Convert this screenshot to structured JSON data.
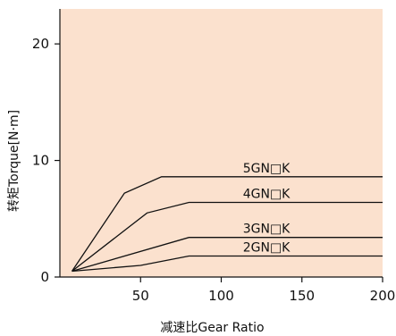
{
  "chart_data": {
    "type": "line",
    "title": "",
    "xlabel": "减速比Gear Ratio",
    "ylabel": "转矩Torque[N·m]",
    "xlim": [
      0,
      200
    ],
    "ylim": [
      0,
      23
    ],
    "xticks": [
      50,
      100,
      150,
      200
    ],
    "xtick_labels": [
      "50",
      "100",
      "150",
      "200"
    ],
    "yticks": [
      0,
      10,
      20
    ],
    "ytick_labels": [
      "0",
      "10",
      "20"
    ],
    "grid": false,
    "plot_background": "#fbe1ce",
    "line_color": "#111111",
    "series": [
      {
        "name": "5GN□K",
        "x": [
          7.5,
          40,
          63,
          200
        ],
        "y": [
          0.5,
          7.2,
          8.6,
          8.6
        ]
      },
      {
        "name": "4GN□K",
        "x": [
          7.5,
          54,
          80,
          200
        ],
        "y": [
          0.5,
          5.5,
          6.4,
          6.4
        ]
      },
      {
        "name": "3GN□K",
        "x": [
          7.5,
          80,
          200
        ],
        "y": [
          0.5,
          3.4,
          3.4
        ]
      },
      {
        "name": "2GN□K",
        "x": [
          7.5,
          50,
          80,
          200
        ],
        "y": [
          0.5,
          1.0,
          1.8,
          1.8
        ]
      }
    ]
  }
}
